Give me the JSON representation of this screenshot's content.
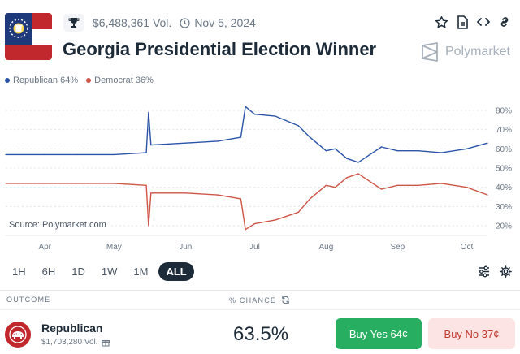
{
  "market": {
    "volume": "$6,488,361 Vol.",
    "end_date": "Nov 5, 2024",
    "title": "Georgia Presidential Election Winner",
    "brand": "Polymarket"
  },
  "legend": {
    "republican": "Republican 64%",
    "democrat": "Democrat 36%"
  },
  "source": "Source: Polymarket.com",
  "ranges": [
    "1H",
    "6H",
    "1D",
    "1W",
    "1M",
    "ALL"
  ],
  "active_range": "ALL",
  "table": {
    "outcome_header": "OUTCOME",
    "chance_header": "% CHANCE"
  },
  "outcome": {
    "name": "Republican",
    "volume": "$1,703,280 Vol.",
    "chance": "63.5%",
    "buy_yes": "Buy Yes 64¢",
    "buy_no": "Buy No 37¢"
  },
  "colors": {
    "republican": "#2b54a8",
    "democrat": "#cf5546",
    "buy_yes": "#27ae60",
    "buy_no_bg": "#fbe4e3"
  },
  "chart_data": {
    "type": "line",
    "x_ticks": [
      "Apr",
      "May",
      "Jun",
      "Jul",
      "Aug",
      "Sep",
      "Oct"
    ],
    "y_ticks": [
      "80%",
      "70%",
      "60%",
      "50%",
      "40%",
      "30%",
      "20%"
    ],
    "ylim": [
      20,
      80
    ],
    "grid": true,
    "legend_position": "top-left",
    "series": [
      {
        "name": "Republican",
        "color": "#2b54a8",
        "points": [
          [
            "Mar 15",
            57
          ],
          [
            "Apr 1",
            57
          ],
          [
            "Apr 15",
            57
          ],
          [
            "May 1",
            57
          ],
          [
            "May 15",
            58
          ],
          [
            "May 16",
            79
          ],
          [
            "May 17",
            62
          ],
          [
            "Jun 1",
            63
          ],
          [
            "Jun 15",
            64
          ],
          [
            "Jun 25",
            66
          ],
          [
            "Jun 27",
            82
          ],
          [
            "Jul 1",
            78
          ],
          [
            "Jul 10",
            77
          ],
          [
            "Jul 20",
            72
          ],
          [
            "Jul 25",
            66
          ],
          [
            "Aug 1",
            59
          ],
          [
            "Aug 5",
            60
          ],
          [
            "Aug 10",
            55
          ],
          [
            "Aug 15",
            53
          ],
          [
            "Aug 20",
            57
          ],
          [
            "Aug 25",
            61
          ],
          [
            "Sep 1",
            59
          ],
          [
            "Sep 10",
            59
          ],
          [
            "Sep 20",
            58
          ],
          [
            "Oct 1",
            60
          ],
          [
            "Oct 10",
            63
          ]
        ]
      },
      {
        "name": "Democrat",
        "color": "#cf5546",
        "points": [
          [
            "Mar 15",
            42
          ],
          [
            "Apr 1",
            42
          ],
          [
            "Apr 15",
            42
          ],
          [
            "May 1",
            42
          ],
          [
            "May 15",
            41
          ],
          [
            "May 16",
            20
          ],
          [
            "May 17",
            37
          ],
          [
            "Jun 1",
            37
          ],
          [
            "Jun 15",
            36
          ],
          [
            "Jun 25",
            34
          ],
          [
            "Jun 27",
            18
          ],
          [
            "Jul 1",
            21
          ],
          [
            "Jul 10",
            23
          ],
          [
            "Jul 20",
            27
          ],
          [
            "Jul 25",
            34
          ],
          [
            "Aug 1",
            41
          ],
          [
            "Aug 5",
            40
          ],
          [
            "Aug 10",
            45
          ],
          [
            "Aug 15",
            47
          ],
          [
            "Aug 20",
            43
          ],
          [
            "Aug 25",
            39
          ],
          [
            "Sep 1",
            41
          ],
          [
            "Sep 10",
            41
          ],
          [
            "Sep 20",
            42
          ],
          [
            "Oct 1",
            40
          ],
          [
            "Oct 10",
            36
          ]
        ]
      }
    ]
  }
}
